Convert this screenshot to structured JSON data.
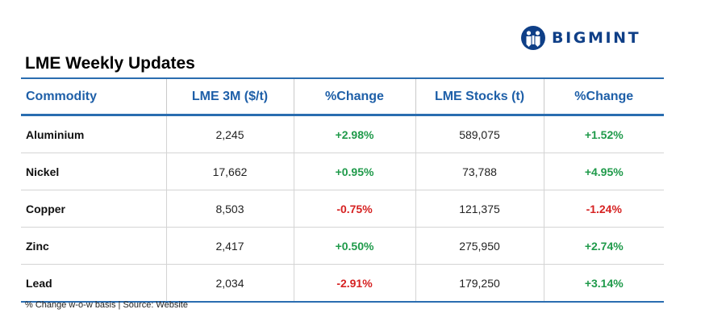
{
  "brand": {
    "name": "BIGMINT",
    "color": "#0f3f87"
  },
  "title": "LME Weekly Updates",
  "table": {
    "headers": [
      "Commodity",
      "LME 3M ($/t)",
      "%Change",
      "LME Stocks (t)",
      "%Change"
    ],
    "rows": [
      {
        "commodity": "Aluminium",
        "lme_3m": "2,245",
        "lme_3m_change": "+2.98%",
        "stocks": "589,075",
        "stocks_change": "+1.52%"
      },
      {
        "commodity": "Nickel",
        "lme_3m": "17,662",
        "lme_3m_change": "+0.95%",
        "stocks": "73,788",
        "stocks_change": "+4.95%"
      },
      {
        "commodity": "Copper",
        "lme_3m": "8,503",
        "lme_3m_change": "-0.75%",
        "stocks": "121,375",
        "stocks_change": "-1.24%"
      },
      {
        "commodity": "Zinc",
        "lme_3m": "2,417",
        "lme_3m_change": "+0.50%",
        "stocks": "275,950",
        "stocks_change": "+2.74%"
      },
      {
        "commodity": "Lead",
        "lme_3m": "2,034",
        "lme_3m_change": "-2.91%",
        "stocks": "179,250",
        "stocks_change": "+3.14%"
      }
    ]
  },
  "colors": {
    "header_text": "#1e5fa8",
    "rule": "#2a6db0",
    "positive": "#1f9a4a",
    "negative": "#d62222"
  },
  "footnote": "% Change w-o-w basis | Source: Website"
}
